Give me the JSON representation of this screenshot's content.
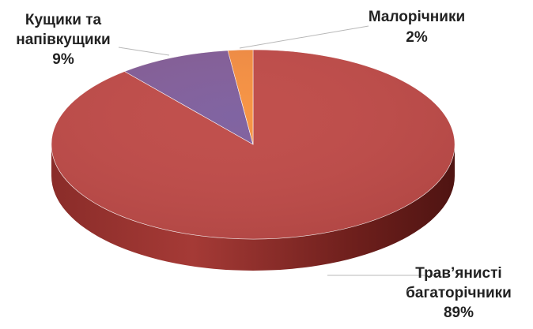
{
  "chart_data": {
    "type": "pie",
    "style": "3d",
    "title": "",
    "slices": [
      {
        "label_lines": [
          "Трав’янисті",
          "багаторічники"
        ],
        "value": 89,
        "value_label": "89%",
        "color": "#c0504d",
        "side_color": "#8e2f2c",
        "icon": ""
      },
      {
        "label_lines": [
          "Кущики та",
          "напівкущики"
        ],
        "value": 9,
        "value_label": "9%",
        "color": "#8064a2",
        "side_color": "#5d4479"
      },
      {
        "label_lines": [
          "Малорічники"
        ],
        "value": 2,
        "value_label": "2%",
        "color": "#f79646",
        "side_color": "#c06d2a"
      }
    ],
    "legend": "none",
    "data_labels": "outside-with-leader-lines"
  }
}
